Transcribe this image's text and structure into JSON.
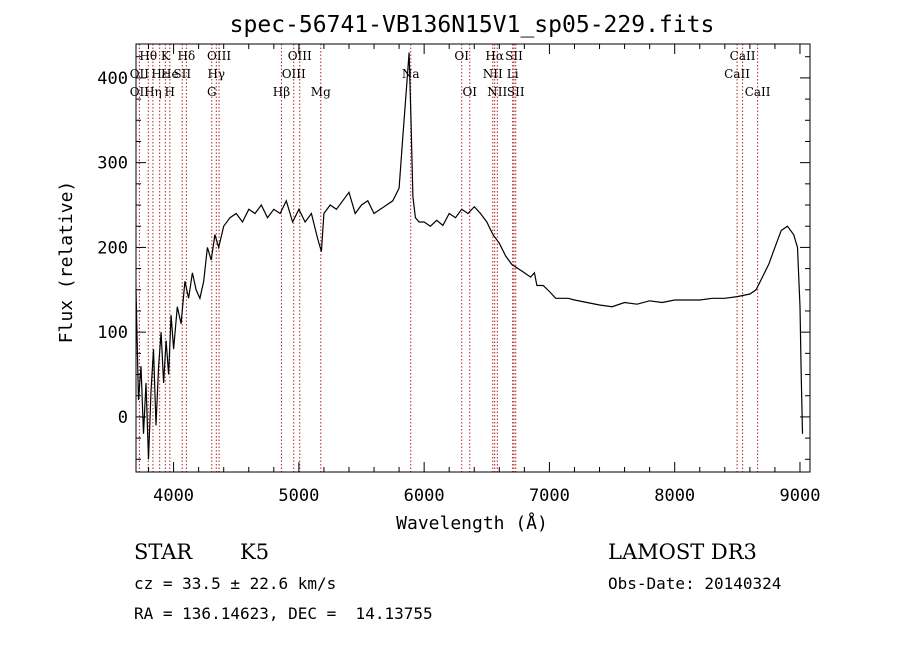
{
  "chart_data": {
    "type": "line",
    "title": "spec-56741-VB136N15V1_sp05-229.fits",
    "xlabel": "Wavelength (Å)",
    "ylabel": "Flux (relative)",
    "xlim": [
      3700,
      9080
    ],
    "ylim": [
      -65,
      440
    ],
    "x_ticks": [
      4000,
      5000,
      6000,
      7000,
      8000,
      9000
    ],
    "y_ticks": [
      0,
      100,
      200,
      300,
      400
    ],
    "series": [
      {
        "name": "flux",
        "x": [
          3700,
          3720,
          3740,
          3760,
          3780,
          3800,
          3820,
          3840,
          3860,
          3880,
          3900,
          3920,
          3940,
          3960,
          3980,
          4000,
          4030,
          4060,
          4090,
          4120,
          4150,
          4180,
          4210,
          4240,
          4270,
          4300,
          4330,
          4360,
          4400,
          4450,
          4500,
          4550,
          4600,
          4650,
          4700,
          4750,
          4800,
          4850,
          4900,
          4950,
          5000,
          5050,
          5100,
          5150,
          5180,
          5200,
          5250,
          5300,
          5350,
          5400,
          5450,
          5500,
          5550,
          5600,
          5650,
          5700,
          5750,
          5800,
          5830,
          5860,
          5880,
          5895,
          5910,
          5930,
          5960,
          6000,
          6050,
          6100,
          6150,
          6200,
          6250,
          6300,
          6350,
          6400,
          6450,
          6500,
          6550,
          6600,
          6650,
          6700,
          6750,
          6800,
          6850,
          6880,
          6900,
          6950,
          7000,
          7050,
          7100,
          7150,
          7200,
          7300,
          7400,
          7500,
          7600,
          7700,
          7800,
          7900,
          8000,
          8100,
          8200,
          8300,
          8400,
          8500,
          8600,
          8650,
          8700,
          8750,
          8800,
          8850,
          8900,
          8950,
          8980,
          9000,
          9010,
          9020
        ],
        "y": [
          150,
          20,
          60,
          -20,
          40,
          -50,
          30,
          80,
          -10,
          60,
          100,
          40,
          90,
          50,
          120,
          80,
          130,
          110,
          160,
          140,
          170,
          150,
          140,
          160,
          200,
          185,
          215,
          200,
          225,
          235,
          240,
          230,
          245,
          240,
          250,
          235,
          245,
          240,
          255,
          230,
          245,
          230,
          240,
          210,
          195,
          240,
          250,
          245,
          255,
          265,
          240,
          250,
          255,
          240,
          245,
          250,
          255,
          270,
          330,
          390,
          430,
          350,
          260,
          235,
          230,
          230,
          225,
          232,
          226,
          240,
          235,
          245,
          240,
          248,
          240,
          230,
          215,
          205,
          190,
          180,
          175,
          170,
          165,
          170,
          155,
          155,
          148,
          140,
          140,
          140,
          138,
          135,
          132,
          130,
          135,
          133,
          137,
          135,
          138,
          138,
          138,
          140,
          140,
          142,
          145,
          150,
          165,
          180,
          200,
          220,
          225,
          215,
          200,
          130,
          50,
          -20
        ]
      }
    ],
    "line_labels": [
      {
        "text": "Hθ",
        "x": 3798,
        "row": 0
      },
      {
        "text": "OII",
        "x": 3727,
        "row": 1
      },
      {
        "text": "OII",
        "x": 3727,
        "row": 2
      },
      {
        "text": "K",
        "x": 3934,
        "row": 0
      },
      {
        "text": "Hε",
        "x": 3889,
        "row": 1
      },
      {
        "text": "Hη",
        "x": 3835,
        "row": 2
      },
      {
        "text": "He",
        "x": 3970,
        "row": 1
      },
      {
        "text": "H",
        "x": 3969,
        "row": 2
      },
      {
        "text": "Hδ",
        "x": 4102,
        "row": 0
      },
      {
        "text": "SII",
        "x": 4069,
        "row": 1
      },
      {
        "text": "OIII",
        "x": 4363,
        "row": 0
      },
      {
        "text": "Hγ",
        "x": 4341,
        "row": 1
      },
      {
        "text": "G",
        "x": 4305,
        "row": 2
      },
      {
        "text": "OIII",
        "x": 5007,
        "row": 0
      },
      {
        "text": "OIII",
        "x": 4959,
        "row": 1
      },
      {
        "text": "Hβ",
        "x": 4861,
        "row": 2
      },
      {
        "text": "Mg",
        "x": 5175,
        "row": 2
      },
      {
        "text": "Na",
        "x": 5893,
        "row": 1
      },
      {
        "text": "OI",
        "x": 6300,
        "row": 0
      },
      {
        "text": "OI",
        "x": 6364,
        "row": 2
      },
      {
        "text": "Hα",
        "x": 6563,
        "row": 0
      },
      {
        "text": "NII",
        "x": 6548,
        "row": 1
      },
      {
        "text": "NII",
        "x": 6584,
        "row": 2
      },
      {
        "text": "SII",
        "x": 6717,
        "row": 0
      },
      {
        "text": "Li",
        "x": 6707,
        "row": 1
      },
      {
        "text": "SII",
        "x": 6731,
        "row": 2
      },
      {
        "text": "CaII",
        "x": 8542,
        "row": 0
      },
      {
        "text": "CaII",
        "x": 8498,
        "row": 1
      },
      {
        "text": "CaII",
        "x": 8662,
        "row": 2
      }
    ],
    "line_color": "#000000",
    "marker_color": "#b22222"
  },
  "info": {
    "class": "STAR",
    "subclass": "K5",
    "survey": "LAMOST DR3",
    "cz": "cz = 33.5 ± 22.6 km/s",
    "obs_date": "Obs-Date: 20140324",
    "radec": "RA = 136.14623, DEC =  14.13755"
  }
}
